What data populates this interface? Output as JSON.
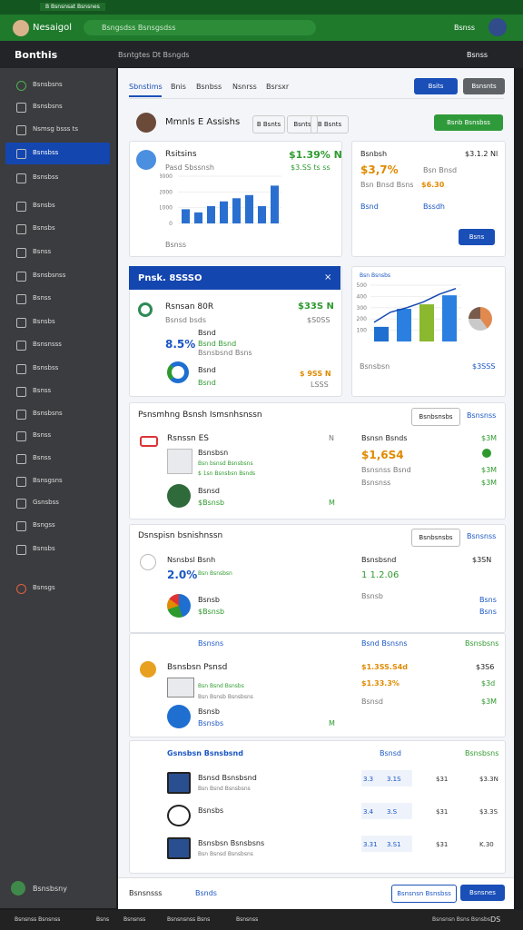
{
  "browser": {
    "tab": "B Bsnsnsat Bsnsnes",
    "profile": "Nesaigol",
    "address": "Bsngsdss Bsnsgsdss",
    "account": "Bsnss"
  },
  "header": {
    "app": "Bonthis",
    "breadcrumb": "Bsntgtes Dt Bsngds",
    "user": "Bsnss"
  },
  "sidebar": {
    "items": [
      "Bsnsbsns",
      "Bsnsbsns",
      "Nsmsg bsss ts",
      "Bsnsbss",
      "Bsnsbss",
      "Bsnsbs",
      "Bsnsbs",
      "Bsnss",
      "Bsnsbsnss",
      "Bsnss",
      "Bsnsbs",
      "Bsnsnsss",
      "Bsnsbss",
      "Bsnss",
      "Bsnsbsns",
      "Bsnss",
      "Bsnss",
      "Bsnsgsns",
      "Gsnsbss",
      "Bsngss",
      "Bsnsbs",
      "Bsnsgs"
    ],
    "active": 3,
    "footer": "Bsnsbsny"
  },
  "tabs": [
    "Sbnstims",
    "Bnis",
    "Bsnbss",
    "Nsnrss",
    "Bsrsxr"
  ],
  "actions": {
    "primary": "Bsits",
    "secondary": "Bsnsnts"
  },
  "profile": {
    "name": "Mmnls E Assishs",
    "filters": [
      "B Bsnts",
      "Bsnts",
      "B Bsnts"
    ],
    "cta": "Bsnb Bsnsbss"
  },
  "revenue_card": {
    "title": "Rsitsins",
    "value": "$1.39% N",
    "subtitle": "Pasd Sbssnsh",
    "change": "$3.SS ts ss",
    "chart": {
      "type": "bar",
      "ylim": [
        0,
        3000
      ],
      "yticks": [
        0,
        1000,
        2000,
        3000
      ],
      "values": [
        900,
        700,
        1100,
        1400,
        1600,
        1800,
        1100,
        2400
      ]
    },
    "caption": "Bsnss"
  },
  "summary_card": {
    "title": "Bsnbsh",
    "value_right": "$3.1.2 Nl",
    "value": "$3,7%",
    "label": "Bsn Bnsd",
    "detail": "Bsn Bnsd Bsns",
    "amount": "$6.30",
    "foot_left": "Bsnd",
    "foot_right": "Bssdh",
    "dropdown": "Bsns"
  },
  "alert_card": {
    "header": "Pnsk. 8SSSO",
    "name": "Rsnsan 80R",
    "value": "$33S N",
    "subtitle": "Bsnsd bsds",
    "sub_value": "$S0SS",
    "percent": "8.5%",
    "label": "Bsnd",
    "detail": "Bsnd Bsnd",
    "detail2": "Bsnsbsnd Bsns",
    "foot": "Bsnd",
    "foot_value": "$ 9SS N",
    "foot_sub": "Bsnd",
    "foot_sub2": "LSSS"
  },
  "trend_card": {
    "title": "Bsn Bsnsbs",
    "chart": {
      "type": "bar",
      "ylim": [
        0,
        500
      ],
      "yticks": [
        100,
        200,
        300,
        400,
        500
      ],
      "values": [
        130,
        290,
        330,
        410
      ],
      "line": [
        170,
        260,
        300,
        350,
        420,
        470
      ]
    },
    "caption": "Bsnsbsn",
    "caption_value": "$3SSS"
  },
  "section1": {
    "title": "Psnsmhng Bsnsh Ismsnhsnssn",
    "button": "Bsnbsnsbs",
    "link": "Bsnsnss",
    "rows": [
      {
        "name": "Rsnssn ES",
        "mark": "N",
        "right_title": "Bsnsn Bsnds",
        "right_mark": "$3M"
      },
      {
        "name": "Bsnsbsn",
        "detail": "Bsn bsnsd Bsnsbsns",
        "detail2": "$ 1sn Bsnsbsn Bsnds",
        "right_value": "$1,6S4",
        "right_mark": "$3M",
        "right_detail": "Bsnsnss Bsnd",
        "right_detail2": "$3M"
      },
      {
        "name": "Bsnsd",
        "detail": "$Bsnsb",
        "right_mark": "M",
        "right_detail": "Bsnsnss"
      }
    ]
  },
  "section2": {
    "title": "Dsnspisn bsnishnssn",
    "button": "Bsnbsnsbs",
    "link": "Bsnsnss",
    "rows": [
      {
        "name": "Nsnsbsl Bsnh",
        "value": "2.0%",
        "detail": "Bsn Bsnsbsn",
        "right_title": "Bsnsbsnd",
        "right_value": "1 1.2.06",
        "right_mark": "$3SN",
        "right_detail": "Bsnsb",
        "right_detail2": "Bsns"
      },
      {
        "name": "Bsnsb",
        "detail": "$Bsnsb",
        "right_mark": "Bsns"
      }
    ]
  },
  "section3": {
    "head": [
      "Bsnsns",
      "Bsnd Bsnsns",
      "Bsnsbsns"
    ],
    "rows": [
      {
        "name": "Bsnsbsn Psnsd",
        "detail": "Bsn Bsnd Bsnsbs",
        "detail2": "Bsn Bsnsb Bsnsbsns",
        "right_value": "$1.3SS.S4d",
        "right_value2": "$1.33.3%",
        "right_mark": "$3S6",
        "right_mark2": "$3d",
        "right_detail": "Bsnsd",
        "right_detail2": "$3M"
      },
      {
        "name": "Bsnsb",
        "detail": "Bsnsbs",
        "right_mark": "M"
      }
    ]
  },
  "section4": {
    "title": "Gsnsbsn Bsnsbsnd",
    "head": [
      "Bsnsd",
      "Bsnsbsns"
    ],
    "rows": [
      {
        "name": "Bsnsd Bsnsbsnd",
        "detail": "Bsn Bsnd Bsnsbsns",
        "cells": [
          "3.3",
          "3.1S",
          "$31",
          "$3.3N"
        ]
      },
      {
        "name": "Bsnsbs",
        "cells": [
          "3.4",
          "3.S",
          "$31",
          "$3.3S"
        ]
      },
      {
        "name": "Bsnsbsn Bsnsbsns",
        "detail": "Bsn Bsnsd Bsnsbsns",
        "cells": [
          "3.31",
          "3.S1",
          "$31",
          "K.30"
        ]
      }
    ]
  },
  "footer": {
    "left": "Bsnsnsss",
    "link": "Bsnds",
    "secondary": "Bsnsnsn Bsnsbss",
    "primary": "Bsnsnes"
  },
  "taskbar": {
    "items": [
      "Bsnsnss Bsnsnss",
      "Bsns",
      "Bsnsnss",
      "Bsnsnsnss Bsns",
      "Bsnsnss"
    ],
    "status": "Bsnsnsn Bsns Bsnsbs",
    "clock": "DS"
  }
}
